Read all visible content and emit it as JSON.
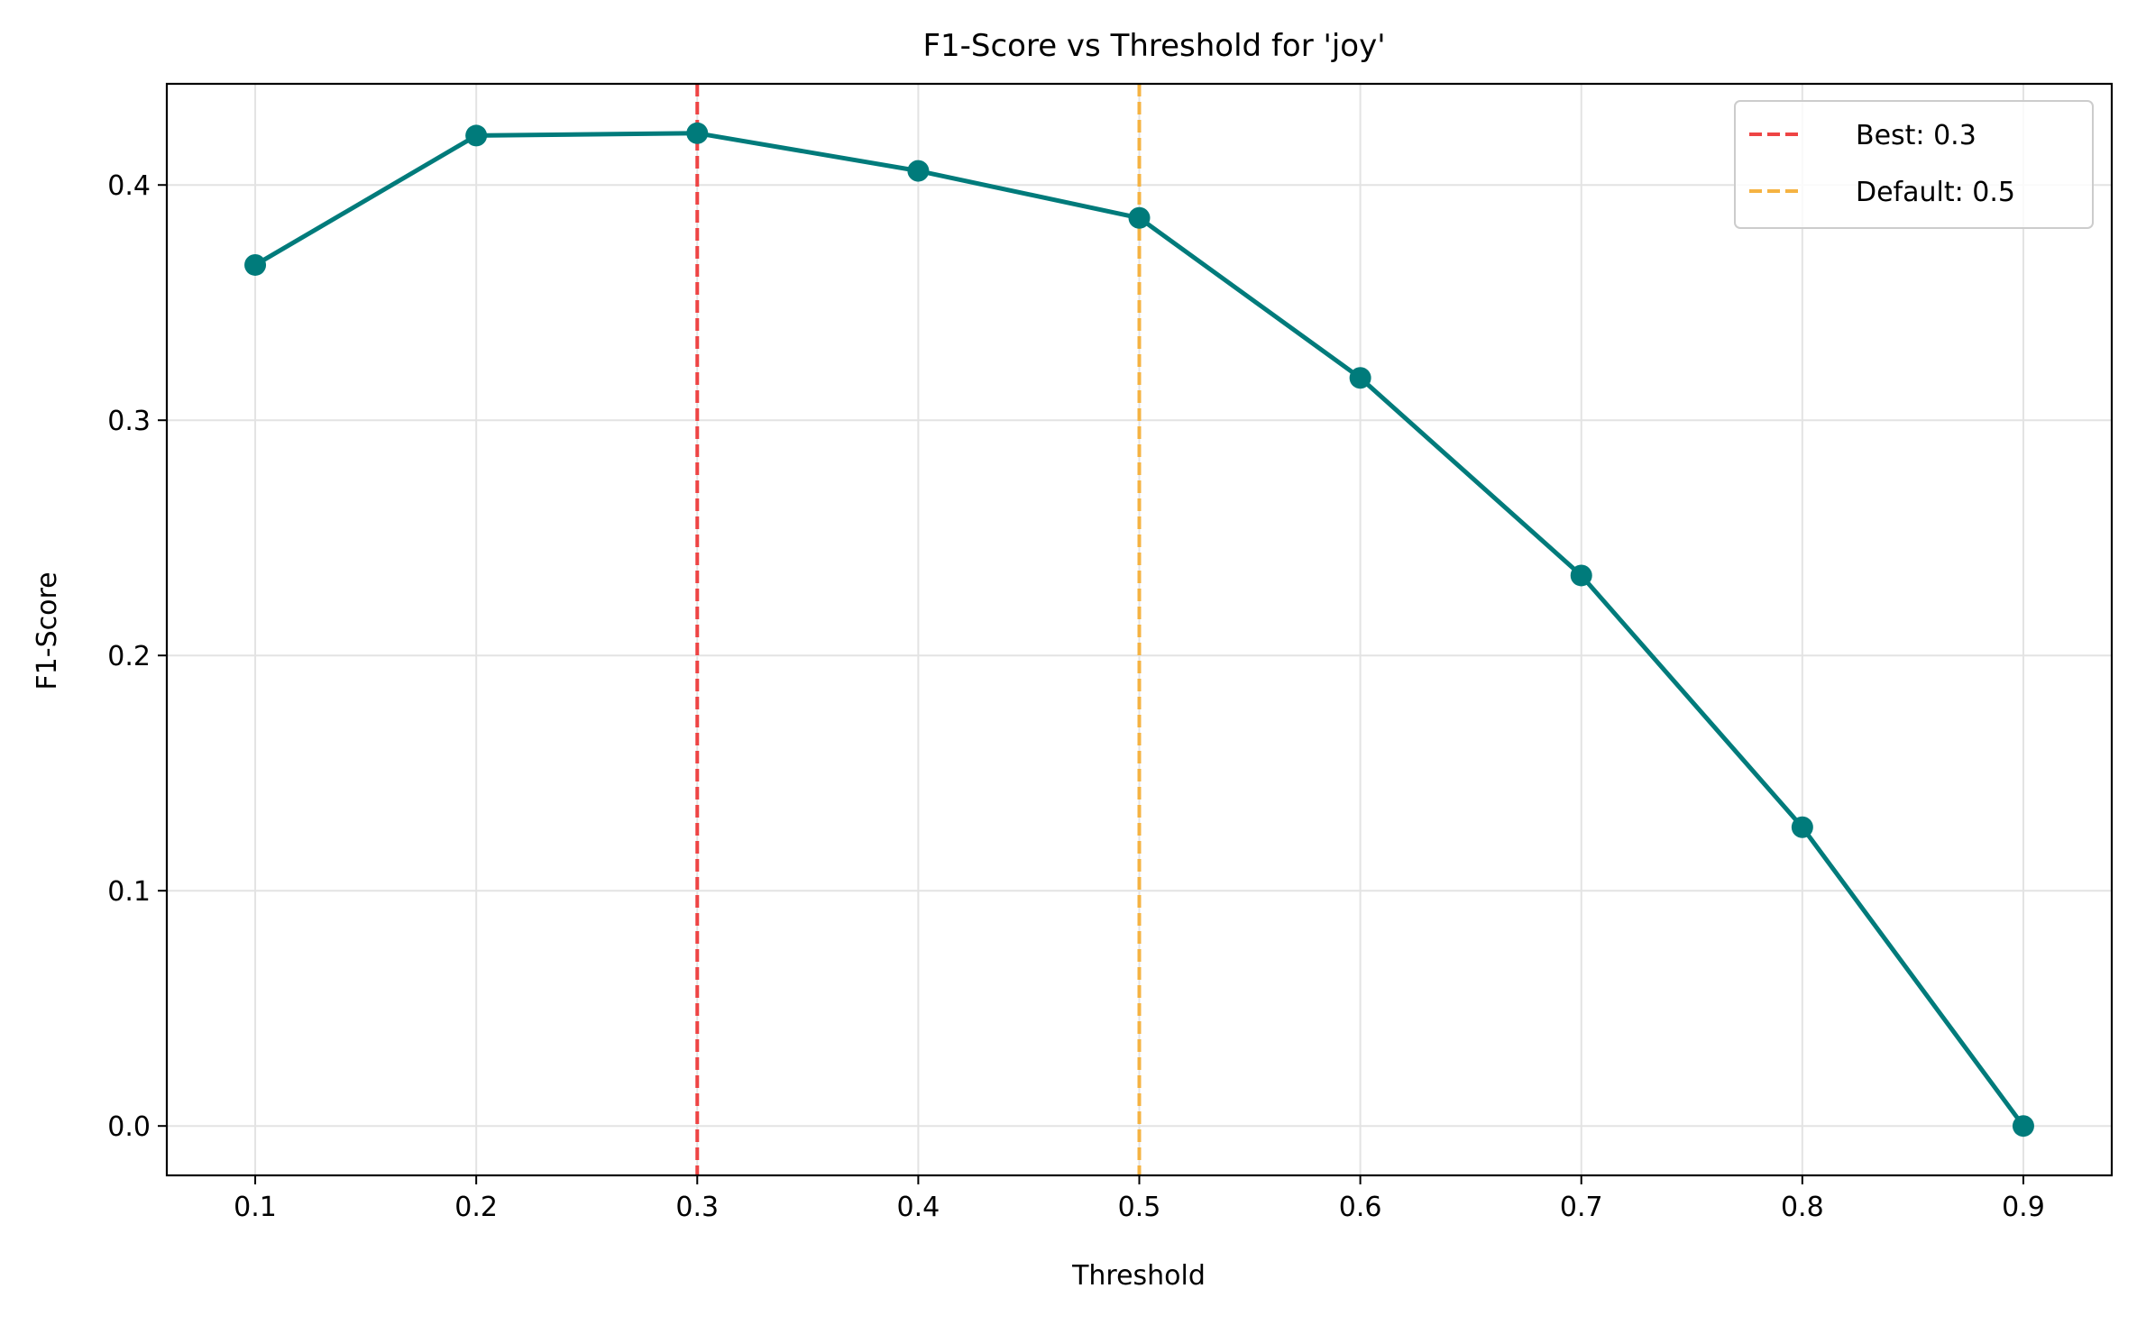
{
  "chart_data": {
    "type": "line",
    "title": "F1-Score vs Threshold for 'joy'",
    "xlabel": "Threshold",
    "ylabel": "F1-Score",
    "xlim": [
      0.06,
      0.94
    ],
    "ylim": [
      -0.021,
      0.443
    ],
    "x_ticks": [
      0.1,
      0.2,
      0.3,
      0.4,
      0.5,
      0.6,
      0.7,
      0.8,
      0.9
    ],
    "x_tick_labels": [
      "0.1",
      "0.2",
      "0.3",
      "0.4",
      "0.5",
      "0.6",
      "0.7",
      "0.8",
      "0.9"
    ],
    "y_ticks": [
      0.0,
      0.1,
      0.2,
      0.3,
      0.4
    ],
    "y_tick_labels": [
      "0.0",
      "0.1",
      "0.2",
      "0.3",
      "0.4"
    ],
    "grid": true,
    "legend_position": "top-right",
    "series": [
      {
        "color": "#007b7b",
        "marker": "circle",
        "x": [
          0.1,
          0.2,
          0.3,
          0.4,
          0.5,
          0.6,
          0.7,
          0.8,
          0.9
        ],
        "y": [
          0.366,
          0.421,
          0.422,
          0.406,
          0.386,
          0.318,
          0.234,
          0.127,
          0.0
        ]
      }
    ],
    "reference_lines": [
      {
        "name": "Best: 0.3",
        "x": 0.3,
        "color": "#ee4444",
        "style": "dashed"
      },
      {
        "name": "Default: 0.5",
        "x": 0.5,
        "color": "#f5b342",
        "style": "dashed"
      }
    ]
  }
}
